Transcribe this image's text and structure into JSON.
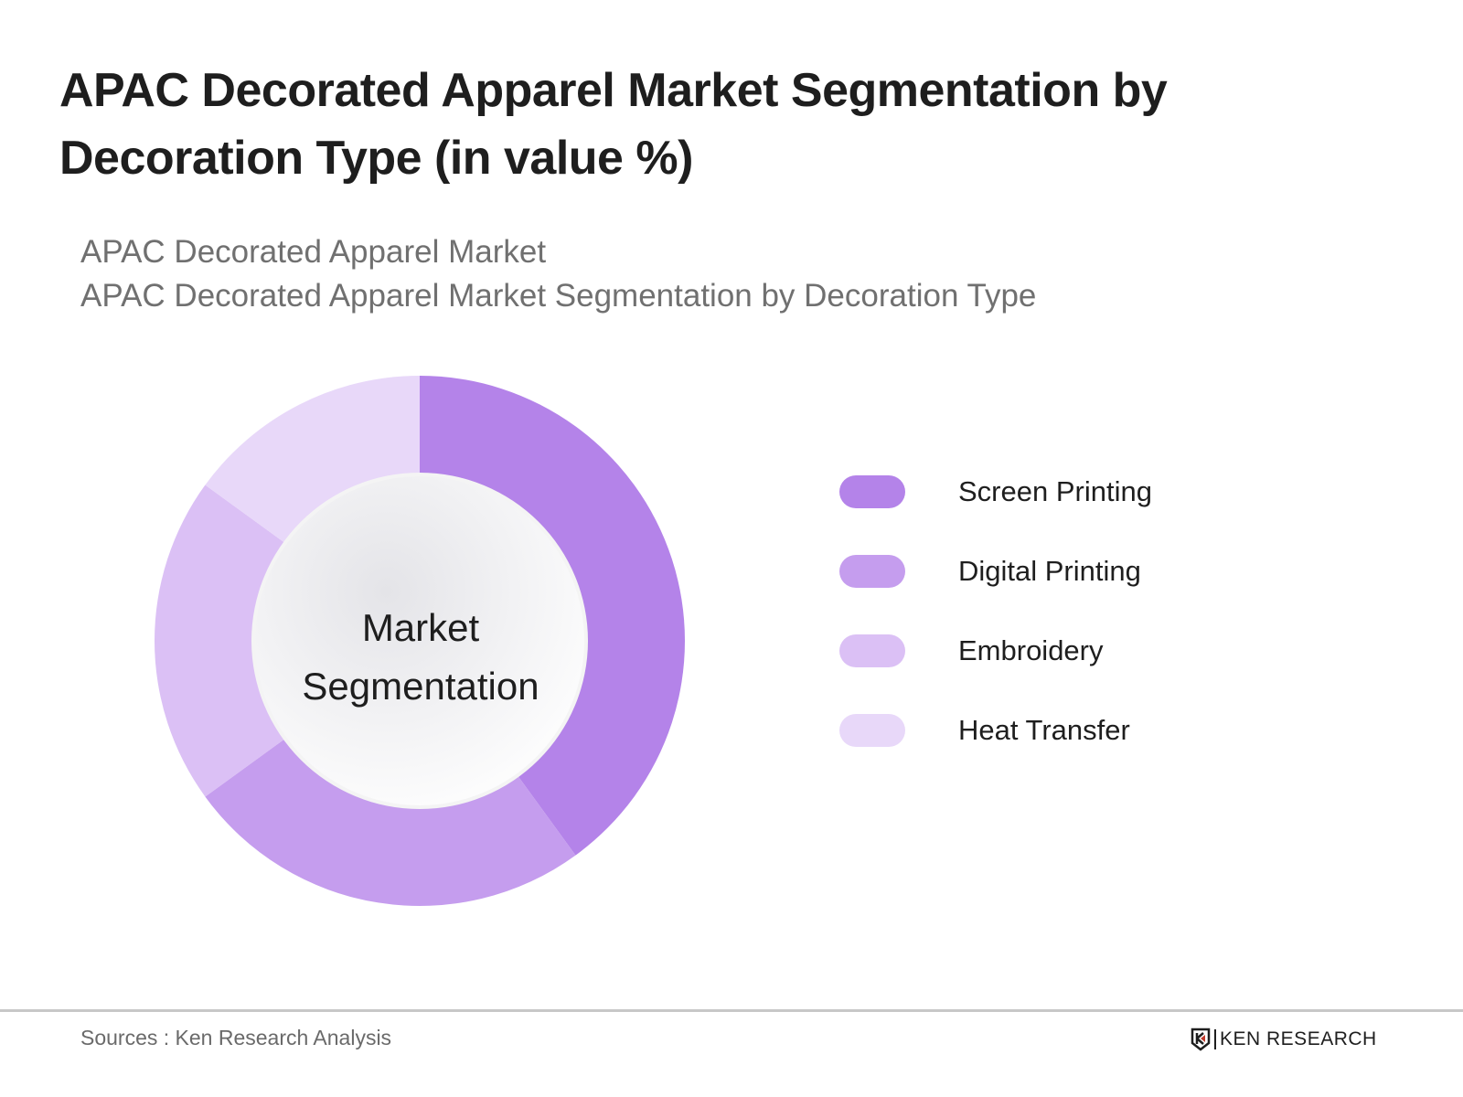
{
  "header": {
    "title": "APAC Decorated Apparel Market Segmentation by Decoration Type (in value %)",
    "subtitle_lines": [
      "APAC Decorated Apparel Market",
      "APAC Decorated Apparel Market Segmentation by Decoration Type"
    ]
  },
  "center_label": {
    "line1": "Market",
    "line2": "Segmentation"
  },
  "legend": [
    {
      "label": "Screen Printing",
      "color": "#b483e9"
    },
    {
      "label": "Digital Printing",
      "color": "#c59dee"
    },
    {
      "label": "Embroidery",
      "color": "#dbc0f5"
    },
    {
      "label": "Heat Transfer",
      "color": "#e8d8f9"
    }
  ],
  "footer": {
    "source": "Sources : Ken Research Analysis",
    "brand": "KEN RESEARCH"
  },
  "chart_data": {
    "type": "pie",
    "variant": "donut",
    "title": "APAC Decorated Apparel Market Segmentation by Decoration Type (in value %)",
    "subtitle": "APAC Decorated Apparel Market Segmentation by Decoration Type",
    "categories": [
      "Screen Printing",
      "Digital Printing",
      "Embroidery",
      "Heat Transfer"
    ],
    "values": [
      40,
      25,
      20,
      15
    ],
    "unit": "%",
    "colors": [
      "#b483e9",
      "#c59dee",
      "#dbc0f5",
      "#e8d8f9"
    ],
    "center_text": "Market Segmentation",
    "legend_position": "right",
    "start_angle": "12 o'clock, clockwise"
  }
}
